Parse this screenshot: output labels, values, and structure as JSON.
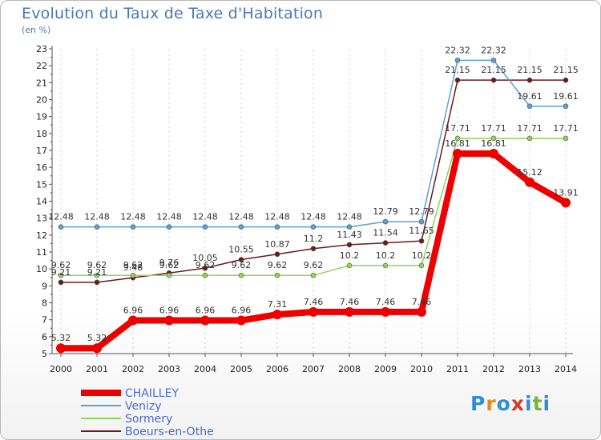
{
  "header": {
    "title": "Evolution du Taux de Taxe d'Habitation",
    "unit": "(en %)"
  },
  "logo": {
    "letters": [
      "P",
      "r",
      "o",
      "x",
      "i",
      "t",
      "i"
    ],
    "colors": [
      "#2e8fd8",
      "#e08a22",
      "#2e8fd8",
      "#d8382e",
      "#2e8fd8",
      "#7ab43c",
      "#2e8fd8"
    ]
  },
  "chart_data": {
    "type": "line",
    "x": [
      "2000",
      "2001",
      "2002",
      "2003",
      "2004",
      "2005",
      "2006",
      "2007",
      "2008",
      "2009",
      "2010",
      "2011",
      "2012",
      "2013",
      "2014"
    ],
    "ylim": [
      5,
      23
    ],
    "yticks": [
      5,
      6,
      7,
      8,
      9,
      10,
      11,
      12,
      13,
      14,
      15,
      16,
      17,
      18,
      19,
      20,
      21,
      22,
      23
    ],
    "grid": "vertical-dashed",
    "legend": "bottom-left",
    "series": [
      {
        "name": "CHAILLEY",
        "color": "#ee0000",
        "values": [
          5.32,
          5.32,
          6.96,
          6.96,
          6.96,
          6.96,
          7.31,
          7.46,
          7.46,
          7.46,
          7.46,
          16.81,
          16.81,
          15.12,
          13.91
        ],
        "labels": [
          "5.32",
          "5.32",
          "6.96",
          "6.96",
          "6.96",
          "6.96",
          "7.31",
          "7.46",
          "7.46",
          "7.46",
          "7.46",
          "16.81",
          "16.81",
          "15.12",
          "13.91"
        ]
      },
      {
        "name": "Venizy",
        "color": "#5f9fd2",
        "values": [
          12.48,
          12.48,
          12.48,
          12.48,
          12.48,
          12.48,
          12.48,
          12.48,
          12.48,
          12.79,
          12.79,
          22.32,
          22.32,
          19.61,
          19.61
        ],
        "labels": [
          "12.48",
          "12.48",
          "12.48",
          "12.48",
          "12.48",
          "12.48",
          "12.48",
          "12.48",
          "12.48",
          "12.79",
          "12.79",
          "22.32",
          "22.32",
          "19.61",
          "19.61"
        ]
      },
      {
        "name": "Sormery",
        "color": "#8fd45a",
        "values": [
          9.62,
          9.62,
          9.62,
          9.62,
          9.62,
          9.62,
          9.62,
          9.62,
          10.2,
          10.2,
          10.2,
          17.71,
          17.71,
          17.71,
          17.71
        ],
        "labels": [
          "9.62",
          "9.62",
          "9.62",
          "9.62",
          "9.62",
          "9.62",
          "9.62",
          "9.62",
          "10.2",
          "10.2",
          "10.2",
          "17.71",
          "17.71",
          "17.71",
          "17.71"
        ]
      },
      {
        "name": "Boeurs-en-Othe",
        "color": "#6a1a1a",
        "values": [
          9.21,
          9.21,
          9.48,
          9.76,
          10.05,
          10.55,
          10.87,
          11.2,
          11.43,
          11.54,
          11.65,
          21.15,
          21.15,
          21.15,
          21.15
        ],
        "labels": [
          "9.21",
          "9.21",
          "9.48",
          "9.76",
          "10.05",
          "10.55",
          "10.87",
          "11.2",
          "11.43",
          "11.54",
          "11.65",
          "21.15",
          "21.15",
          "21.15",
          "21.15"
        ]
      }
    ]
  }
}
